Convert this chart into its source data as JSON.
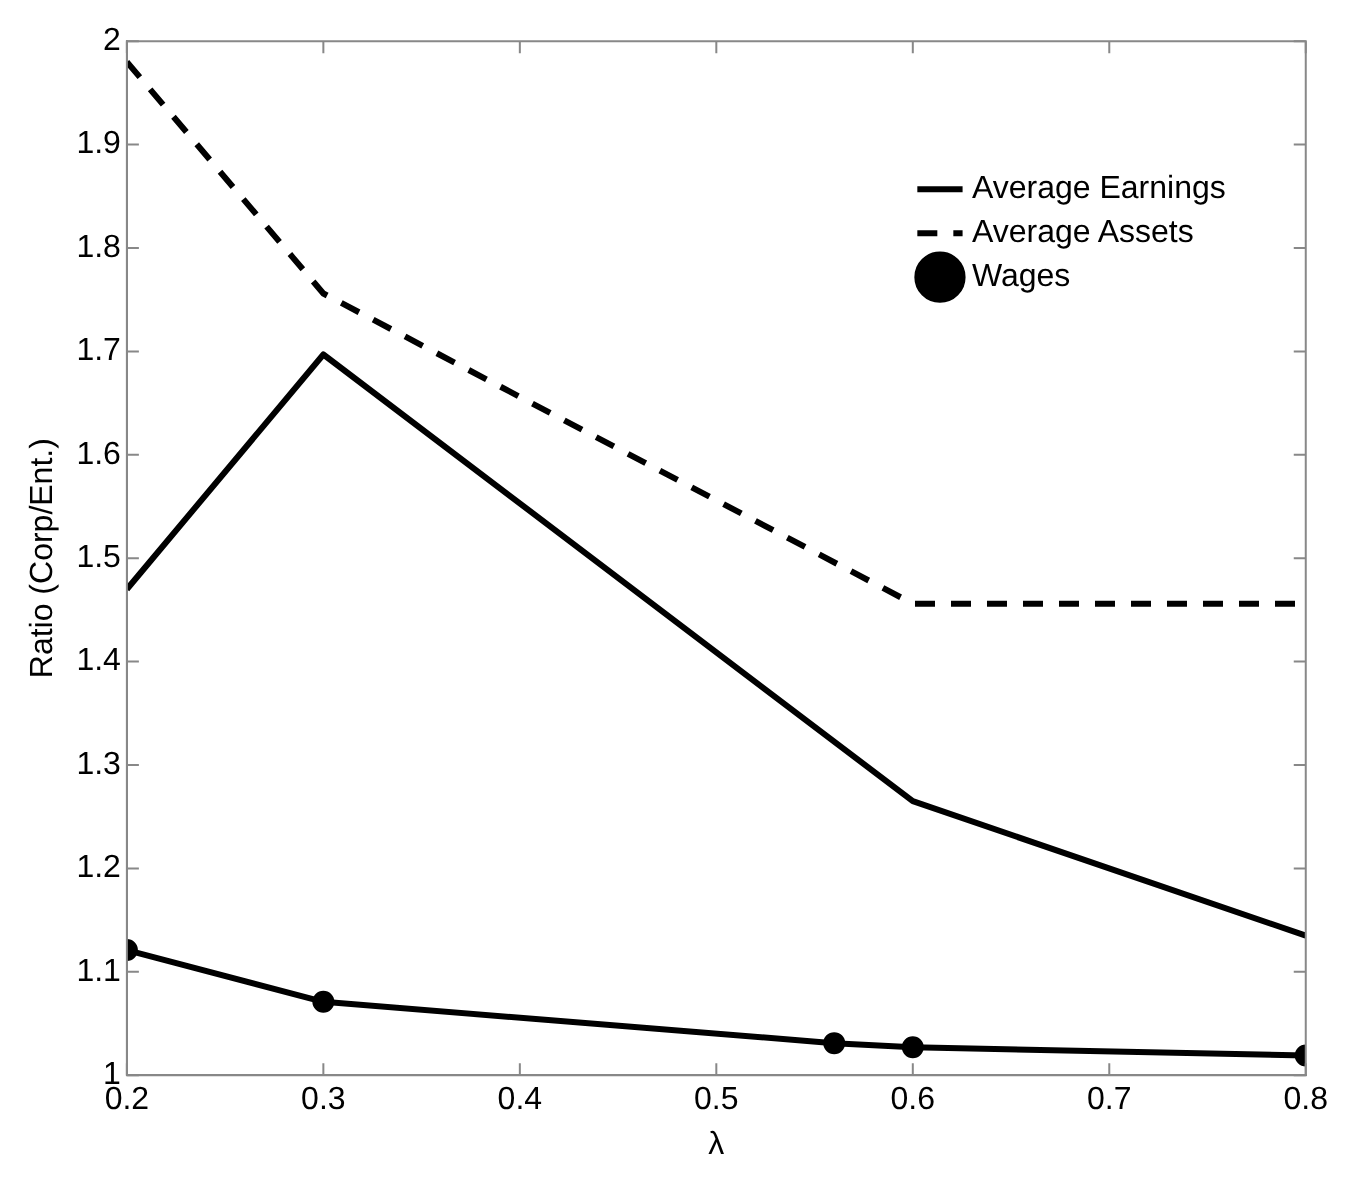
{
  "chart_data": {
    "type": "line",
    "xlabel": "λ",
    "ylabel": "Ratio (Corp/Ent.)",
    "xlim": [
      0.2,
      0.8
    ],
    "xticks": [
      0.2,
      0.3,
      0.4,
      0.5,
      0.6,
      0.7,
      0.8
    ],
    "ylim": [
      1,
      2
    ],
    "yticks": [
      1,
      1.1,
      1.2,
      1.3,
      1.4,
      1.5,
      1.6,
      1.7,
      1.8,
      1.9,
      2
    ],
    "grid": false,
    "legend": "top right",
    "series": [
      {
        "name": "Average Earnings",
        "color": "#000000",
        "line_style": "solid",
        "marker": "none",
        "x": [
          0.2,
          0.3,
          0.6,
          0.8
        ],
        "values": [
          1.47,
          1.697,
          1.265,
          1.135
        ]
      },
      {
        "name": "Average Assets",
        "color": "#000000",
        "line_style": "dashed",
        "marker": "none",
        "x": [
          0.2,
          0.3,
          0.6,
          0.8
        ],
        "values": [
          1.98,
          1.756,
          1.456,
          1.456
        ]
      },
      {
        "name": "Wages",
        "color": "#000000",
        "line_style": "solid",
        "marker": "circle",
        "x": [
          0.2,
          0.3,
          0.56,
          0.6,
          0.8
        ],
        "values": [
          1.121,
          1.071,
          1.031,
          1.027,
          1.019
        ]
      }
    ]
  }
}
